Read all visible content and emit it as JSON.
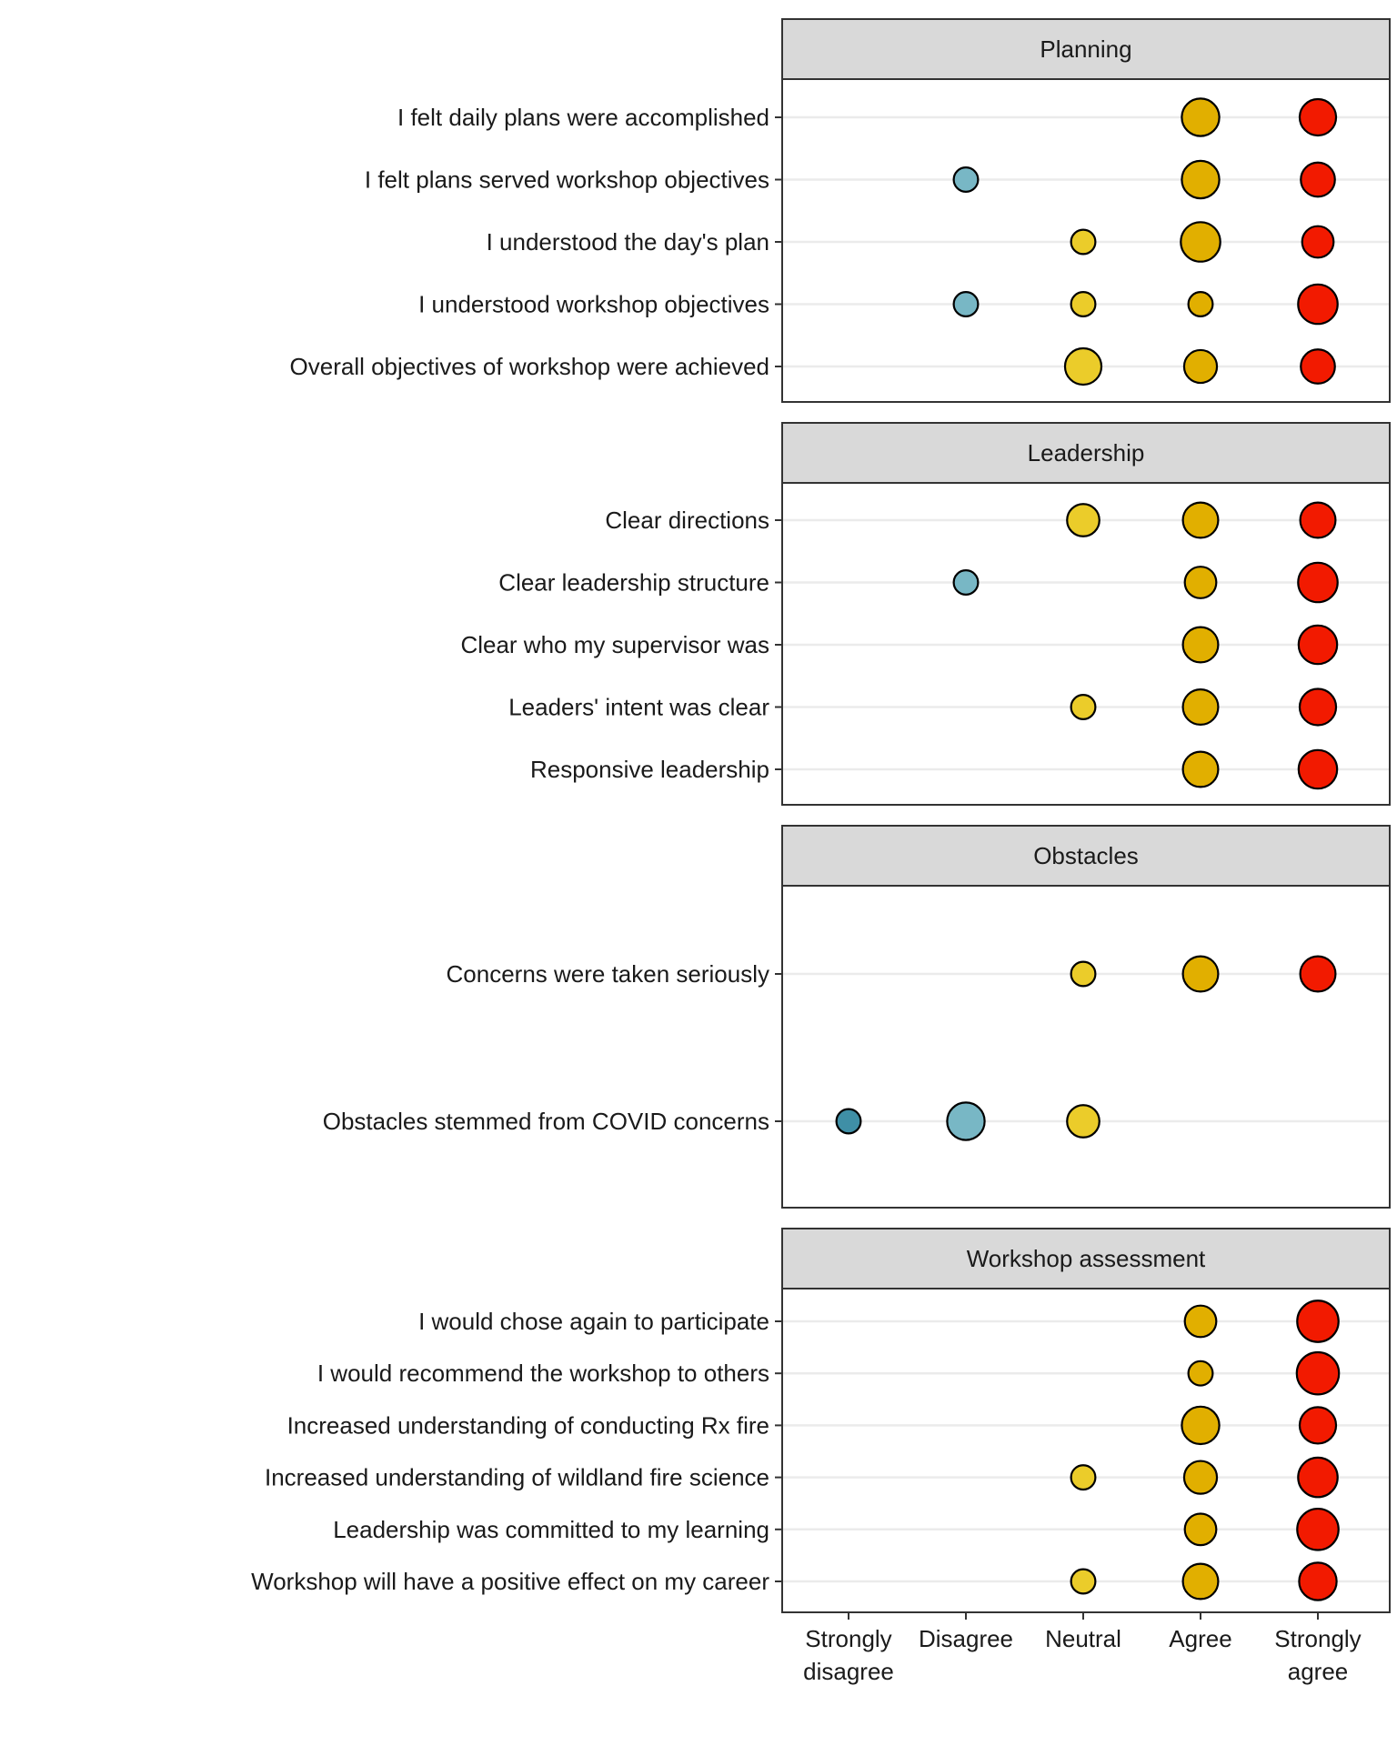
{
  "chart_data": {
    "type": "scatter",
    "x_categories": [
      "Strongly disagree",
      "Disagree",
      "Neutral",
      "Agree",
      "Strongly agree"
    ],
    "x_tick_labels": [
      [
        "Strongly",
        "disagree"
      ],
      [
        "Disagree"
      ],
      [
        "Neutral"
      ],
      [
        "Agree"
      ],
      [
        "Strongly",
        "agree"
      ]
    ],
    "colors": {
      "Strongly disagree": "#3f8fa6",
      "Disagree": "#78b7c5",
      "Neutral": "#ebcc2a",
      "Agree": "#e1af00",
      "Strongly agree": "#f21a00"
    },
    "grid": true,
    "legend": "none",
    "size_encoding": "relative frequency of responses (0-1)",
    "panels": [
      {
        "title": "Planning",
        "rows": [
          {
            "label": "I felt daily plans were accomplished",
            "values": {
              "Agree": 0.55,
              "Strongly agree": 0.5
            }
          },
          {
            "label": "I felt plans served workshop objectives",
            "values": {
              "Disagree": 0.1,
              "Agree": 0.55,
              "Strongly agree": 0.4
            }
          },
          {
            "label": "I understood the day's plan",
            "values": {
              "Neutral": 0.1,
              "Agree": 0.65,
              "Strongly agree": 0.3
            }
          },
          {
            "label": "I understood workshop objectives",
            "values": {
              "Disagree": 0.1,
              "Neutral": 0.1,
              "Agree": 0.1,
              "Strongly agree": 0.65
            }
          },
          {
            "label": "Overall objectives of workshop were achieved",
            "values": {
              "Neutral": 0.5,
              "Agree": 0.35,
              "Strongly agree": 0.4
            }
          }
        ]
      },
      {
        "title": "Leadership",
        "rows": [
          {
            "label": "Clear directions",
            "values": {
              "Neutral": 0.33,
              "Agree": 0.45,
              "Strongly agree": 0.45
            }
          },
          {
            "label": "Clear leadership structure",
            "values": {
              "Disagree": 0.1,
              "Agree": 0.3,
              "Strongly agree": 0.65
            }
          },
          {
            "label": "Clear who my supervisor was",
            "values": {
              "Agree": 0.45,
              "Strongly agree": 0.6
            }
          },
          {
            "label": "Leaders' intent was clear",
            "values": {
              "Neutral": 0.1,
              "Agree": 0.45,
              "Strongly agree": 0.5
            }
          },
          {
            "label": "Responsive leadership",
            "values": {
              "Agree": 0.45,
              "Strongly agree": 0.6
            }
          }
        ]
      },
      {
        "title": "Obstacles",
        "rows": [
          {
            "label": "Concerns were taken seriously",
            "values": {
              "Neutral": 0.1,
              "Agree": 0.45,
              "Strongly agree": 0.45
            }
          },
          {
            "label": "Obstacles stemmed from COVID concerns",
            "values": {
              "Strongly disagree": 0.1,
              "Disagree": 0.55,
              "Neutral": 0.33
            }
          }
        ]
      },
      {
        "title": "Workshop assessment",
        "rows": [
          {
            "label": "I would chose again to participate",
            "values": {
              "Agree": 0.3,
              "Strongly agree": 0.75
            }
          },
          {
            "label": "I would recommend the workshop to others",
            "values": {
              "Agree": 0.1,
              "Strongly agree": 0.8
            }
          },
          {
            "label": "Increased understanding of conducting Rx fire",
            "values": {
              "Agree": 0.55,
              "Strongly agree": 0.5
            }
          },
          {
            "label": "Increased understanding of wildland fire science",
            "values": {
              "Neutral": 0.1,
              "Agree": 0.35,
              "Strongly agree": 0.65
            }
          },
          {
            "label": "Leadership was committed to my learning",
            "values": {
              "Agree": 0.3,
              "Strongly agree": 0.75
            }
          },
          {
            "label": "Workshop will have a positive effect on my career",
            "values": {
              "Neutral": 0.1,
              "Agree": 0.45,
              "Strongly agree": 0.55
            }
          }
        ]
      }
    ]
  }
}
